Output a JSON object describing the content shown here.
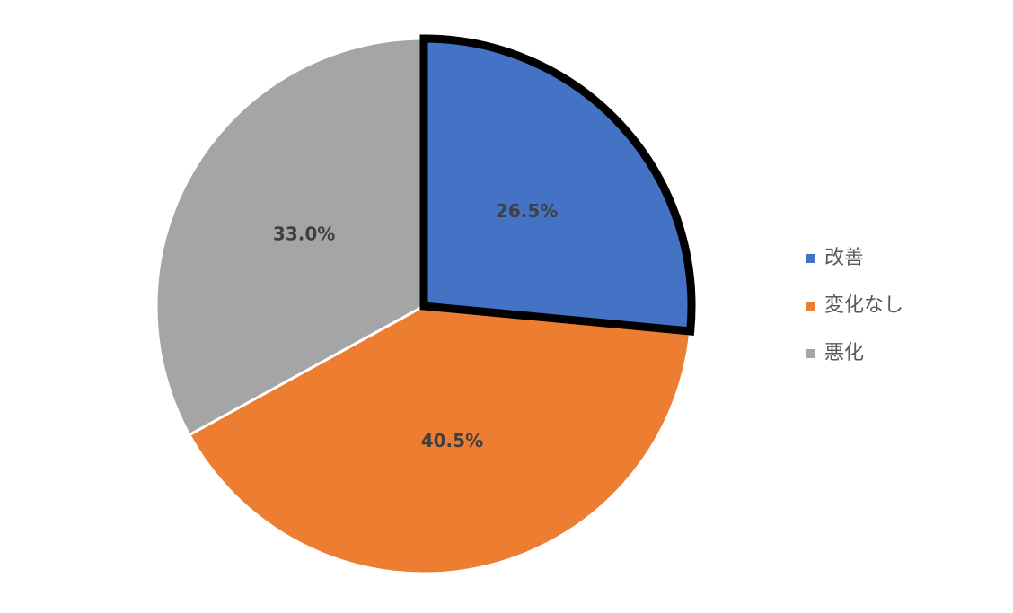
{
  "chart_data": {
    "type": "pie",
    "categories": [
      "改善",
      "変化なし",
      "悪化"
    ],
    "values": [
      26.5,
      40.5,
      33.0
    ],
    "value_labels": [
      "26.5%",
      "40.5%",
      "33.0%"
    ],
    "colors": [
      "#4472c4",
      "#ed7d31",
      "#a5a5a5"
    ],
    "highlight": 0,
    "legend": "right"
  }
}
